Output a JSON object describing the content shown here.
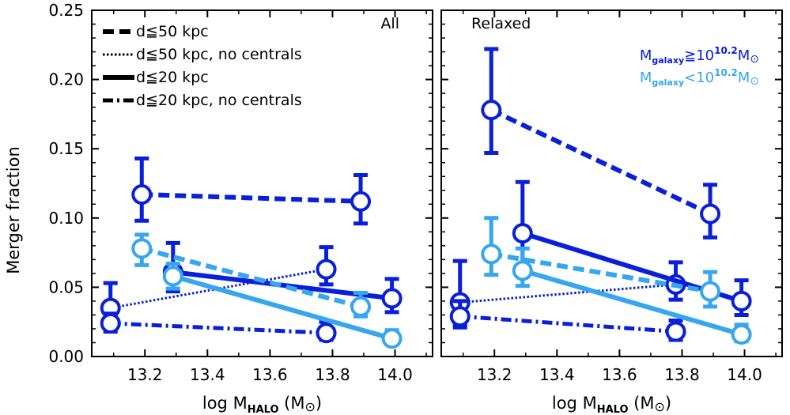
{
  "chart_data": {
    "type": "scatter",
    "ylabel": "Merger fraction",
    "xlabel_prefix": "log M",
    "xlabel_sub": "HALO",
    "xlabel_suffix": " (M",
    "xlabel_close": ")",
    "sun_symbol": "⊙",
    "ylim": [
      0.0,
      0.25
    ],
    "xlim": [
      13.03,
      14.12
    ],
    "yticks": [
      "0.00",
      "0.05",
      "0.10",
      "0.15",
      "0.20",
      "0.25"
    ],
    "xticks": [
      "13.2",
      "13.4",
      "13.6",
      "13.8",
      "14.0"
    ],
    "colors": {
      "massive": "#0a1fd8",
      "low_mass": "#37a6ef"
    },
    "legend": [
      {
        "label": "d≦50 kpc",
        "style": "dashed"
      },
      {
        "label": "d≦50 kpc, no centrals",
        "style": "dotted"
      },
      {
        "label": "d≦20 kpc",
        "style": "solid"
      },
      {
        "label": "d≦20 kpc, no centrals",
        "style": "dashdot"
      }
    ],
    "mass_legend": {
      "prefix": "M",
      "sub": "galaxy",
      "high_op": "≧10",
      "low_op": "<10",
      "exp": "10.2",
      "suffix": "M",
      "sun": "⊙"
    },
    "panels": [
      {
        "label": "All",
        "series": [
          {
            "mass": "massive",
            "style": "dashed",
            "points": [
              {
                "x": 13.19,
                "y": 0.117,
                "lo": 0.098,
                "hi": 0.143
              },
              {
                "x": 13.89,
                "y": 0.112,
                "lo": 0.096,
                "hi": 0.131
              }
            ]
          },
          {
            "mass": "massive",
            "style": "dotted",
            "points": [
              {
                "x": 13.09,
                "y": 0.035,
                "lo": 0.022,
                "hi": 0.053
              },
              {
                "x": 13.78,
                "y": 0.063,
                "lo": 0.052,
                "hi": 0.079
              }
            ]
          },
          {
            "mass": "massive",
            "style": "solid",
            "points": [
              {
                "x": 13.29,
                "y": 0.061,
                "lo": 0.047,
                "hi": 0.082
              },
              {
                "x": 13.99,
                "y": 0.042,
                "lo": 0.032,
                "hi": 0.056
              }
            ]
          },
          {
            "mass": "massive",
            "style": "dashdot",
            "points": [
              {
                "x": 13.09,
                "y": 0.024,
                "lo": 0.018,
                "hi": 0.031
              },
              {
                "x": 13.78,
                "y": 0.017,
                "lo": 0.012,
                "hi": 0.025
              }
            ]
          },
          {
            "mass": "low_mass",
            "style": "dashed",
            "points": [
              {
                "x": 13.19,
                "y": 0.078,
                "lo": 0.066,
                "hi": 0.088
              },
              {
                "x": 13.89,
                "y": 0.036,
                "lo": 0.029,
                "hi": 0.046
              }
            ]
          },
          {
            "mass": "low_mass",
            "style": "solid",
            "points": [
              {
                "x": 13.29,
                "y": 0.058,
                "lo": 0.049,
                "hi": 0.067
              },
              {
                "x": 13.99,
                "y": 0.013,
                "lo": 0.009,
                "hi": 0.019
              }
            ]
          }
        ]
      },
      {
        "label": "Relaxed",
        "series": [
          {
            "mass": "massive",
            "style": "dashed",
            "points": [
              {
                "x": 13.19,
                "y": 0.178,
                "lo": 0.147,
                "hi": 0.222
              },
              {
                "x": 13.89,
                "y": 0.103,
                "lo": 0.086,
                "hi": 0.124
              }
            ]
          },
          {
            "mass": "massive",
            "style": "dotted",
            "points": [
              {
                "x": 13.09,
                "y": 0.039,
                "lo": 0.023,
                "hi": 0.069
              },
              {
                "x": 13.78,
                "y": 0.052,
                "lo": 0.041,
                "hi": 0.068
              }
            ]
          },
          {
            "mass": "massive",
            "style": "solid",
            "points": [
              {
                "x": 13.29,
                "y": 0.089,
                "lo": 0.066,
                "hi": 0.126
              },
              {
                "x": 13.99,
                "y": 0.04,
                "lo": 0.03,
                "hi": 0.055
              }
            ]
          },
          {
            "mass": "massive",
            "style": "dashdot",
            "points": [
              {
                "x": 13.09,
                "y": 0.029,
                "lo": 0.021,
                "hi": 0.04
              },
              {
                "x": 13.78,
                "y": 0.018,
                "lo": 0.012,
                "hi": 0.026
              }
            ]
          },
          {
            "mass": "low_mass",
            "style": "dashed",
            "points": [
              {
                "x": 13.19,
                "y": 0.074,
                "lo": 0.059,
                "hi": 0.1
              },
              {
                "x": 13.89,
                "y": 0.047,
                "lo": 0.036,
                "hi": 0.061
              }
            ]
          },
          {
            "mass": "low_mass",
            "style": "solid",
            "points": [
              {
                "x": 13.29,
                "y": 0.062,
                "lo": 0.051,
                "hi": 0.078
              },
              {
                "x": 13.99,
                "y": 0.016,
                "lo": 0.011,
                "hi": 0.023
              }
            ]
          }
        ]
      }
    ]
  }
}
